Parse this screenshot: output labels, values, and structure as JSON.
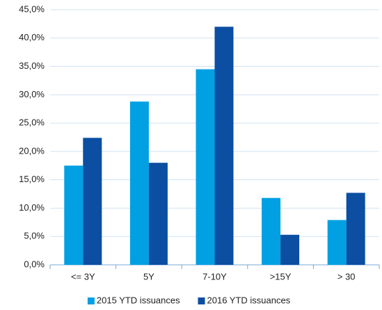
{
  "chart_data": {
    "type": "bar",
    "categories": [
      "<= 3Y",
      "5Y",
      "7-10Y",
      ">15Y",
      "> 30"
    ],
    "series": [
      {
        "name": "2015 YTD issuances",
        "color": "#00a0e3",
        "values": [
          17.5,
          28.8,
          34.5,
          11.8,
          7.9
        ]
      },
      {
        "name": "2016 YTD issuances",
        "color": "#0b4ea2",
        "values": [
          22.4,
          18.0,
          42.0,
          5.3,
          12.7
        ]
      }
    ],
    "ylim": [
      0,
      45
    ],
    "yticks": [
      {
        "value": 0,
        "label": "0,0%"
      },
      {
        "value": 5,
        "label": "5,0%"
      },
      {
        "value": 10,
        "label": "10,0%"
      },
      {
        "value": 15,
        "label": "15,0%"
      },
      {
        "value": 20,
        "label": "20,0%"
      },
      {
        "value": 25,
        "label": "25,0%"
      },
      {
        "value": 30,
        "label": "30,0%"
      },
      {
        "value": 35,
        "label": "35,0%"
      },
      {
        "value": 40,
        "label": "40,0%"
      },
      {
        "value": 45,
        "label": "45,0%"
      }
    ],
    "grid": true,
    "legend": "bottom"
  }
}
